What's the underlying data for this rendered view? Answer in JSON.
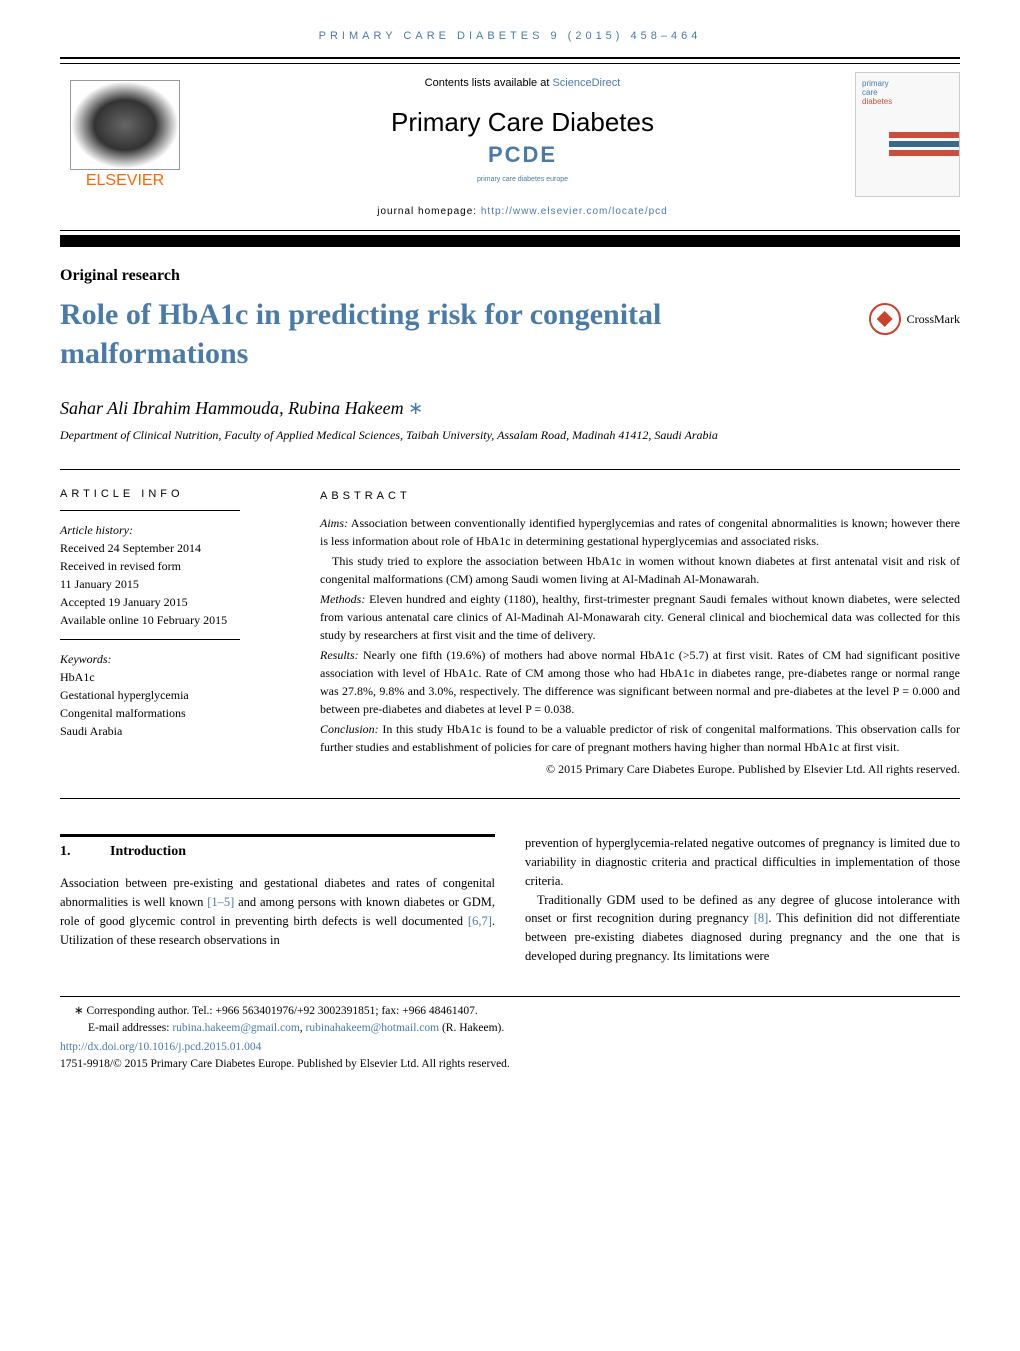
{
  "header": {
    "running_head": "PRIMARY CARE DIABETES 9 (2015) 458–464",
    "contents_prefix": "Contents lists available at ",
    "contents_link": "ScienceDirect",
    "journal_name": "Primary Care Diabetes",
    "pcde_abbrev": "PCDE",
    "pcde_full": "primary care diabetes europe",
    "homepage_prefix": "journal homepage: ",
    "homepage_url": "http://www.elsevier.com/locate/pcd",
    "publisher_name": "ELSEVIER",
    "cover": {
      "title_line1": "primary",
      "title_line2": "care",
      "title_line3": "diabetes",
      "bar_colors": [
        "#c94f3c",
        "#c94f3c",
        "#3a6a8a",
        "#c94f3c"
      ]
    }
  },
  "article": {
    "type": "Original research",
    "title": "Role of HbA1c in predicting risk for congenital malformations",
    "crossmark_label": "CrossMark",
    "authors": "Sahar Ali Ibrahim Hammouda, Rubina Hakeem",
    "affiliation": "Department of Clinical Nutrition, Faculty of Applied Medical Sciences, Taibah University, Assalam Road, Madinah 41412, Saudi Arabia"
  },
  "info": {
    "heading": "ARTICLE INFO",
    "history_label": "Article history:",
    "received": "Received 24 September 2014",
    "revised1": "Received in revised form",
    "revised2": "11 January 2015",
    "accepted": "Accepted 19 January 2015",
    "online": "Available online 10 February 2015",
    "keywords_label": "Keywords:",
    "kw1": "HbA1c",
    "kw2": "Gestational hyperglycemia",
    "kw3": "Congenital malformations",
    "kw4": "Saudi Arabia"
  },
  "abstract": {
    "heading": "ABSTRACT",
    "aims_label": "Aims:",
    "aims_text": " Association between conventionally identified hyperglycemias and rates of congenital abnormalities is known; however there is less information about role of HbA1c in determining gestational hyperglycemias and associated risks.",
    "aims_p2": "This study tried to explore the association between HbA1c in women without known diabetes at first antenatal visit and risk of congenital malformations (CM) among Saudi women living at Al-Madinah Al-Monawarah.",
    "methods_label": "Methods:",
    "methods_text": " Eleven hundred and eighty (1180), healthy, first-trimester pregnant Saudi females without known diabetes, were selected from various antenatal care clinics of Al-Madinah Al-Monawarah city. General clinical and biochemical data was collected for this study by researchers at first visit and the time of delivery.",
    "results_label": "Results:",
    "results_text": " Nearly one fifth (19.6%) of mothers had above normal HbA1c (>5.7) at first visit. Rates of CM had significant positive association with level of HbA1c. Rate of CM among those who had HbA1c in diabetes range, pre-diabetes range or normal range was 27.8%, 9.8% and 3.0%, respectively. The difference was significant between normal and pre-diabetes at the level P = 0.000 and between pre-diabetes and diabetes at level P = 0.038.",
    "conclusion_label": "Conclusion:",
    "conclusion_text": " In this study HbA1c is found to be a valuable predictor of risk of congenital malformations. This observation calls for further studies and establishment of policies for care of pregnant mothers having higher than normal HbA1c at first visit.",
    "copyright": "© 2015 Primary Care Diabetes Europe. Published by Elsevier Ltd. All rights reserved."
  },
  "body": {
    "section_num": "1.",
    "section_title": "Introduction",
    "col1_p1a": "Association between pre-existing and gestational diabetes and rates of congenital abnormalities is well known ",
    "col1_ref1": "[1–5]",
    "col1_p1b": " and among persons with known diabetes or GDM, role of good glycemic control in preventing birth defects is well documented ",
    "col1_ref2": "[6,7]",
    "col1_p1c": ". Utilization of these research observations in",
    "col2_p1": "prevention of hyperglycemia-related negative outcomes of pregnancy is limited due to variability in diagnostic criteria and practical difficulties in implementation of those criteria.",
    "col2_p2a": "Traditionally GDM used to be defined as any degree of glucose intolerance with onset or first recognition during pregnancy ",
    "col2_ref1": "[8]",
    "col2_p2b": ". This definition did not differentiate between pre-existing diabetes diagnosed during pregnancy and the one that is developed during pregnancy. Its limitations were"
  },
  "footnotes": {
    "corresponding": "∗ Corresponding author. Tel.: +966 563401976/+92 3002391851; fax: +966 48461407.",
    "email_prefix": "E-mail addresses: ",
    "email1": "rubina.hakeem@gmail.com",
    "email_sep": ", ",
    "email2": "rubinahakeem@hotmail.com",
    "email_suffix": " (R. Hakeem).",
    "doi": "http://dx.doi.org/10.1016/j.pcd.2015.01.004",
    "issn_line": "1751-9918/© 2015 Primary Care Diabetes Europe. Published by Elsevier Ltd. All rights reserved."
  },
  "colors": {
    "link": "#4a7ba8",
    "elsevier_orange": "#ff6600",
    "crossmark": "#c8432a"
  }
}
